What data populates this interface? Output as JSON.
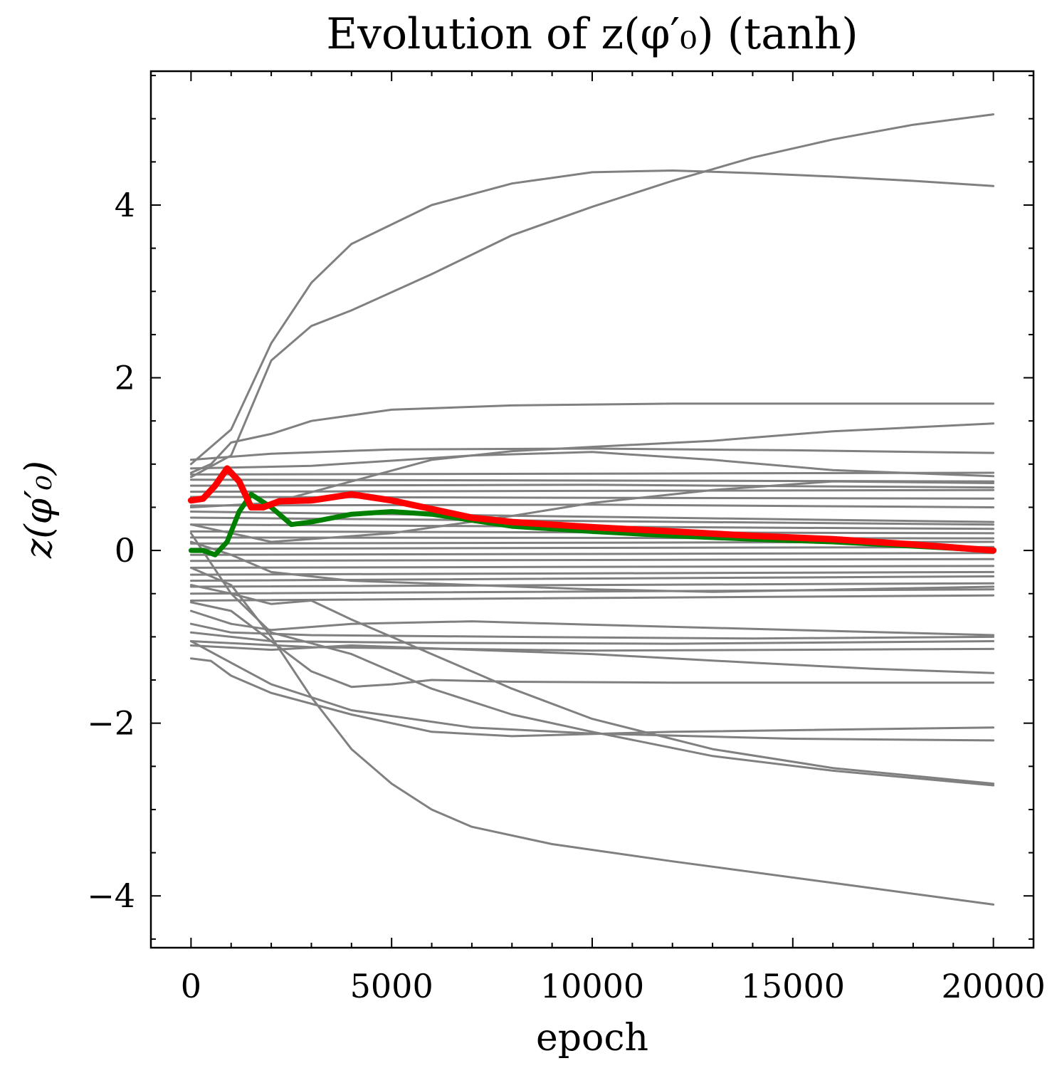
{
  "chart_data": {
    "type": "line",
    "title": "Evolution of z(φ′₀) (tanh)",
    "xlabel": "epoch",
    "ylabel": "z(φ′₀)",
    "xlim": [
      -1000,
      21000
    ],
    "ylim": [
      -4.6,
      5.55
    ],
    "x_ticks": [
      0,
      5000,
      10000,
      15000,
      20000
    ],
    "x_tick_labels": [
      "0",
      "5000",
      "10000",
      "15000",
      "20000"
    ],
    "y_ticks": [
      -4,
      -2,
      0,
      2,
      4
    ],
    "y_tick_labels": [
      "−4",
      "−2",
      "0",
      "2",
      "4"
    ],
    "grid": false,
    "legend": "none",
    "colors": {
      "background_series": "#808080",
      "green": "#008000",
      "red": "#ff0000",
      "axes": "#000000"
    },
    "series": [
      {
        "color": "#808080",
        "points": [
          [
            0,
            1.0
          ],
          [
            1000,
            1.4
          ],
          [
            2000,
            2.4
          ],
          [
            3000,
            3.1
          ],
          [
            4000,
            3.55
          ],
          [
            6000,
            4.0
          ],
          [
            8000,
            4.25
          ],
          [
            10000,
            4.38
          ],
          [
            12000,
            4.4
          ],
          [
            14000,
            4.37
          ],
          [
            16000,
            4.33
          ],
          [
            18000,
            4.28
          ],
          [
            20000,
            4.22
          ]
        ]
      },
      {
        "color": "#808080",
        "points": [
          [
            0,
            0.85
          ],
          [
            1000,
            1.1
          ],
          [
            2000,
            2.2
          ],
          [
            3000,
            2.6
          ],
          [
            4000,
            2.78
          ],
          [
            6000,
            3.2
          ],
          [
            8000,
            3.65
          ],
          [
            10000,
            3.98
          ],
          [
            12000,
            4.28
          ],
          [
            14000,
            4.55
          ],
          [
            16000,
            4.76
          ],
          [
            18000,
            4.93
          ],
          [
            20000,
            5.05
          ]
        ]
      },
      {
        "color": "#808080",
        "points": [
          [
            0,
            0.9
          ],
          [
            500,
            1.0
          ],
          [
            1000,
            1.25
          ],
          [
            2000,
            1.35
          ],
          [
            3000,
            1.5
          ],
          [
            5000,
            1.63
          ],
          [
            8000,
            1.68
          ],
          [
            12000,
            1.7
          ],
          [
            20000,
            1.7
          ]
        ]
      },
      {
        "color": "#808080",
        "points": [
          [
            0,
            0.5
          ],
          [
            2000,
            0.55
          ],
          [
            4000,
            0.8
          ],
          [
            6000,
            1.05
          ],
          [
            8000,
            1.15
          ],
          [
            10000,
            1.2
          ],
          [
            13000,
            1.27
          ],
          [
            16000,
            1.38
          ],
          [
            20000,
            1.47
          ]
        ]
      },
      {
        "color": "#808080",
        "points": [
          [
            0,
            1.05
          ],
          [
            2000,
            1.12
          ],
          [
            5000,
            1.17
          ],
          [
            10000,
            1.18
          ],
          [
            15000,
            1.16
          ],
          [
            20000,
            1.13
          ]
        ]
      },
      {
        "color": "#808080",
        "points": [
          [
            0,
            0.95
          ],
          [
            3000,
            0.98
          ],
          [
            7000,
            1.1
          ],
          [
            10000,
            1.14
          ],
          [
            13000,
            1.05
          ],
          [
            16000,
            0.93
          ],
          [
            20000,
            0.86
          ]
        ]
      },
      {
        "color": "#808080",
        "points": [
          [
            0,
            0.88
          ],
          [
            20000,
            0.9
          ]
        ]
      },
      {
        "color": "#808080",
        "points": [
          [
            0,
            0.82
          ],
          [
            20000,
            0.8
          ]
        ]
      },
      {
        "color": "#808080",
        "points": [
          [
            0,
            0.75
          ],
          [
            10000,
            0.76
          ],
          [
            20000,
            0.73
          ]
        ]
      },
      {
        "color": "#808080",
        "points": [
          [
            0,
            0.68
          ],
          [
            20000,
            0.7
          ]
        ]
      },
      {
        "color": "#808080",
        "points": [
          [
            0,
            0.62
          ],
          [
            20000,
            0.6
          ]
        ]
      },
      {
        "color": "#808080",
        "points": [
          [
            0,
            0.52
          ],
          [
            10000,
            0.53
          ],
          [
            20000,
            0.5
          ]
        ]
      },
      {
        "color": "#808080",
        "points": [
          [
            0,
            0.45
          ],
          [
            20000,
            0.33
          ]
        ]
      },
      {
        "color": "#808080",
        "points": [
          [
            0,
            0.38
          ],
          [
            20000,
            0.3
          ]
        ]
      },
      {
        "color": "#808080",
        "points": [
          [
            0,
            0.3
          ],
          [
            20000,
            0.25
          ]
        ]
      },
      {
        "color": "#808080",
        "points": [
          [
            0,
            0.22
          ],
          [
            20000,
            0.2
          ]
        ]
      },
      {
        "color": "#808080",
        "points": [
          [
            0,
            0.15
          ],
          [
            20000,
            0.14
          ]
        ]
      },
      {
        "color": "#808080",
        "points": [
          [
            0,
            0.08
          ],
          [
            20000,
            0.1
          ]
        ]
      },
      {
        "color": "#808080",
        "points": [
          [
            0,
            0.02
          ],
          [
            20000,
            0.04
          ]
        ]
      },
      {
        "color": "#808080",
        "points": [
          [
            0,
            -0.05
          ],
          [
            20000,
            -0.03
          ]
        ]
      },
      {
        "color": "#808080",
        "points": [
          [
            0,
            -0.12
          ],
          [
            20000,
            -0.1
          ]
        ]
      },
      {
        "color": "#808080",
        "points": [
          [
            0,
            -0.2
          ],
          [
            20000,
            -0.18
          ]
        ]
      },
      {
        "color": "#808080",
        "points": [
          [
            0,
            -0.28
          ],
          [
            20000,
            -0.25
          ]
        ]
      },
      {
        "color": "#808080",
        "points": [
          [
            0,
            -0.35
          ],
          [
            20000,
            -0.3
          ]
        ]
      },
      {
        "color": "#808080",
        "points": [
          [
            0,
            -0.42
          ],
          [
            20000,
            -0.38
          ]
        ]
      },
      {
        "color": "#808080",
        "points": [
          [
            0,
            -0.5
          ],
          [
            20000,
            -0.45
          ]
        ]
      },
      {
        "color": "#808080",
        "points": [
          [
            0,
            -0.58
          ],
          [
            20000,
            -0.52
          ]
        ]
      },
      {
        "color": "#808080",
        "points": [
          [
            0,
            0.1
          ],
          [
            1000,
            -0.05
          ],
          [
            2000,
            -0.25
          ],
          [
            4000,
            -0.35
          ],
          [
            7000,
            -0.4
          ],
          [
            10000,
            -0.45
          ],
          [
            13000,
            -0.48
          ],
          [
            20000,
            -0.42
          ]
        ]
      },
      {
        "color": "#808080",
        "points": [
          [
            0,
            0.3
          ],
          [
            2000,
            0.1
          ],
          [
            5000,
            0.2
          ],
          [
            8000,
            0.4
          ],
          [
            10000,
            0.55
          ],
          [
            13000,
            0.7
          ],
          [
            16000,
            0.8
          ],
          [
            20000,
            0.78
          ]
        ]
      },
      {
        "color": "#808080",
        "points": [
          [
            0,
            -0.7
          ],
          [
            1000,
            -0.85
          ],
          [
            2000,
            -0.92
          ],
          [
            4000,
            -0.85
          ],
          [
            7000,
            -0.82
          ],
          [
            10000,
            -0.86
          ],
          [
            15000,
            -0.92
          ],
          [
            20000,
            -0.98
          ]
        ]
      },
      {
        "color": "#808080",
        "points": [
          [
            0,
            -0.85
          ],
          [
            1000,
            -0.95
          ],
          [
            3000,
            -0.98
          ],
          [
            8000,
            -1.0
          ],
          [
            14000,
            -1.02
          ],
          [
            20000,
            -1.0
          ]
        ]
      },
      {
        "color": "#808080",
        "points": [
          [
            0,
            -0.95
          ],
          [
            2000,
            -1.05
          ],
          [
            6000,
            -1.07
          ],
          [
            12000,
            -1.08
          ],
          [
            20000,
            -1.05
          ]
        ]
      },
      {
        "color": "#808080",
        "points": [
          [
            0,
            -1.05
          ],
          [
            3000,
            -1.12
          ],
          [
            10000,
            -1.16
          ],
          [
            20000,
            -1.14
          ]
        ]
      },
      {
        "color": "#808080",
        "points": [
          [
            0,
            -1.1
          ],
          [
            2000,
            -1.15
          ],
          [
            4000,
            -1.1
          ],
          [
            7000,
            -1.15
          ],
          [
            10000,
            -1.2
          ],
          [
            14000,
            -1.3
          ],
          [
            17000,
            -1.37
          ],
          [
            20000,
            -1.42
          ]
        ]
      },
      {
        "color": "#808080",
        "points": [
          [
            0,
            -0.6
          ],
          [
            1000,
            -0.7
          ],
          [
            2000,
            -1.05
          ],
          [
            3000,
            -1.4
          ],
          [
            4000,
            -1.58
          ],
          [
            5000,
            -1.55
          ],
          [
            6000,
            -1.5
          ],
          [
            8000,
            -1.52
          ],
          [
            12000,
            -1.53
          ],
          [
            20000,
            -1.53
          ]
        ]
      },
      {
        "color": "#808080",
        "points": [
          [
            0,
            -0.4
          ],
          [
            1000,
            -0.5
          ],
          [
            2000,
            -0.62
          ],
          [
            3000,
            -0.58
          ],
          [
            4000,
            -0.8
          ],
          [
            6000,
            -1.2
          ],
          [
            8000,
            -1.6
          ],
          [
            10000,
            -1.95
          ],
          [
            13000,
            -2.3
          ],
          [
            16000,
            -2.52
          ],
          [
            20000,
            -2.7
          ]
        ]
      },
      {
        "color": "#808080",
        "points": [
          [
            0,
            -1.25
          ],
          [
            500,
            -1.28
          ],
          [
            1000,
            -1.45
          ],
          [
            2000,
            -1.65
          ],
          [
            4000,
            -1.9
          ],
          [
            6000,
            -2.1
          ],
          [
            8000,
            -2.15
          ],
          [
            12000,
            -2.1
          ],
          [
            20000,
            -2.05
          ]
        ]
      },
      {
        "color": "#808080",
        "points": [
          [
            0,
            -1.05
          ],
          [
            1000,
            -1.3
          ],
          [
            2000,
            -1.55
          ],
          [
            4000,
            -1.85
          ],
          [
            7000,
            -2.05
          ],
          [
            10000,
            -2.12
          ],
          [
            15000,
            -2.18
          ],
          [
            20000,
            -2.2
          ]
        ]
      },
      {
        "color": "#808080",
        "points": [
          [
            0,
            -0.2
          ],
          [
            1000,
            -0.4
          ],
          [
            2000,
            -1.0
          ],
          [
            3000,
            -1.7
          ],
          [
            4000,
            -2.3
          ],
          [
            5000,
            -2.7
          ],
          [
            6000,
            -3.0
          ],
          [
            7000,
            -3.2
          ],
          [
            9000,
            -3.4
          ],
          [
            12000,
            -3.6
          ],
          [
            16000,
            -3.85
          ],
          [
            20000,
            -4.1
          ]
        ]
      },
      {
        "color": "#808080",
        "points": [
          [
            0,
            0.2
          ],
          [
            1000,
            -0.5
          ],
          [
            2000,
            -0.95
          ],
          [
            4000,
            -1.2
          ],
          [
            6000,
            -1.6
          ],
          [
            8000,
            -1.9
          ],
          [
            10000,
            -2.1
          ],
          [
            13000,
            -2.38
          ],
          [
            16000,
            -2.55
          ],
          [
            20000,
            -2.72
          ]
        ]
      },
      {
        "color": "#008000",
        "name": "",
        "points": [
          [
            0,
            0.0
          ],
          [
            300,
            0.0
          ],
          [
            600,
            -0.05
          ],
          [
            900,
            0.1
          ],
          [
            1200,
            0.45
          ],
          [
            1500,
            0.65
          ],
          [
            2000,
            0.5
          ],
          [
            2500,
            0.3
          ],
          [
            3000,
            0.33
          ],
          [
            4000,
            0.42
          ],
          [
            5000,
            0.45
          ],
          [
            6000,
            0.42
          ],
          [
            7000,
            0.35
          ],
          [
            8000,
            0.28
          ],
          [
            10000,
            0.22
          ],
          [
            12000,
            0.17
          ],
          [
            14000,
            0.13
          ],
          [
            16000,
            0.1
          ],
          [
            18000,
            0.05
          ],
          [
            20000,
            0.0
          ]
        ]
      },
      {
        "color": "#ff0000",
        "name": "",
        "points": [
          [
            0,
            0.58
          ],
          [
            300,
            0.6
          ],
          [
            600,
            0.75
          ],
          [
            900,
            0.95
          ],
          [
            1200,
            0.8
          ],
          [
            1500,
            0.5
          ],
          [
            1800,
            0.5
          ],
          [
            2200,
            0.57
          ],
          [
            3000,
            0.58
          ],
          [
            4000,
            0.65
          ],
          [
            5000,
            0.58
          ],
          [
            6000,
            0.48
          ],
          [
            7000,
            0.38
          ],
          [
            8000,
            0.33
          ],
          [
            10000,
            0.27
          ],
          [
            12000,
            0.22
          ],
          [
            14000,
            0.17
          ],
          [
            16000,
            0.13
          ],
          [
            18000,
            0.07
          ],
          [
            20000,
            0.0
          ]
        ]
      }
    ]
  }
}
